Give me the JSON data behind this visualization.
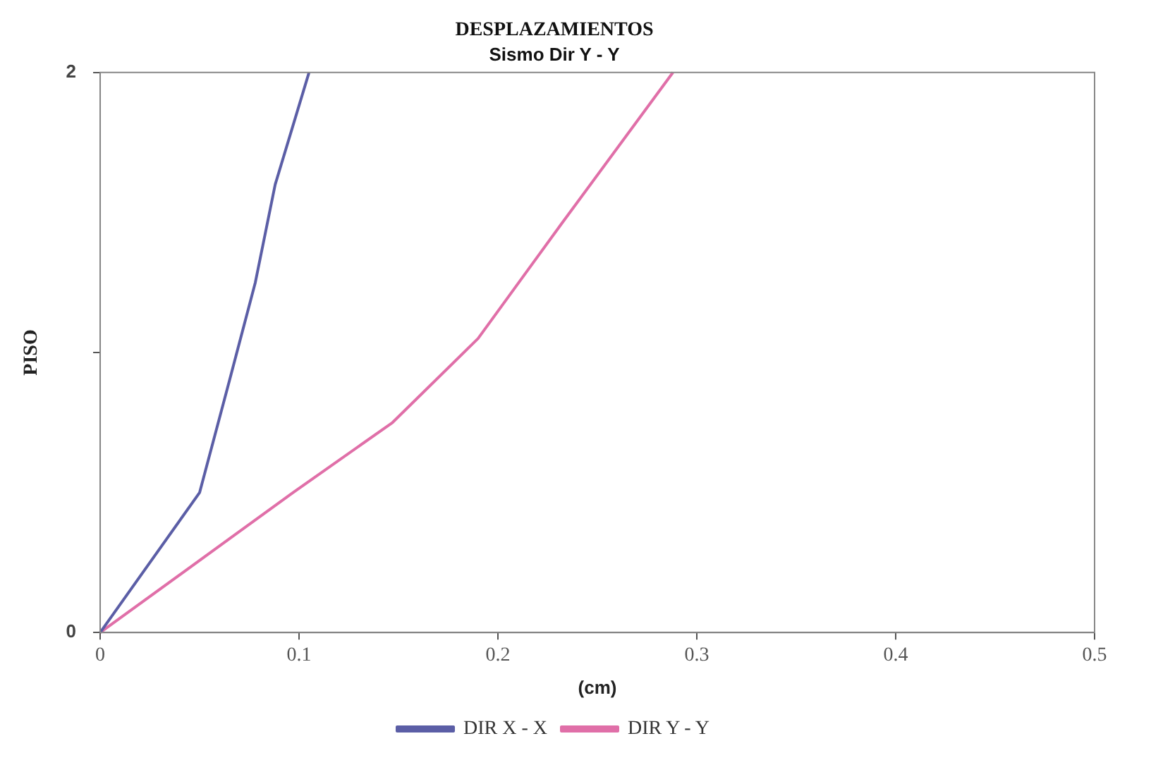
{
  "chart_data": {
    "type": "line",
    "title": "DESPLAZAMIENTOS",
    "subtitle": "Sismo Dir Y - Y",
    "xlabel": "(cm)",
    "ylabel": "PISO",
    "xlim": [
      0,
      0.5
    ],
    "xticks": [
      0,
      0.1,
      0.2,
      0.3,
      0.4,
      0.5
    ],
    "ylim": [
      0,
      2
    ],
    "yticks": [
      0,
      {
        "value": 1,
        "label": null
      },
      2
    ],
    "grid": false,
    "legend": "bottom",
    "marker": "none",
    "series": [
      {
        "name": "DIR X - X",
        "color": "#5b5ea6",
        "x": [
          0,
          0.05,
          0.065,
          0.078,
          0.088,
          0.105
        ],
        "values": [
          0,
          0.5,
          0.9,
          1.25,
          1.6,
          2
        ]
      },
      {
        "name": "DIR Y - Y",
        "color": "#e06fa8",
        "x": [
          0,
          0.097,
          0.147,
          0.19,
          0.232,
          0.288
        ],
        "values": [
          0,
          0.5,
          0.75,
          1.05,
          1.46,
          2
        ]
      }
    ]
  }
}
